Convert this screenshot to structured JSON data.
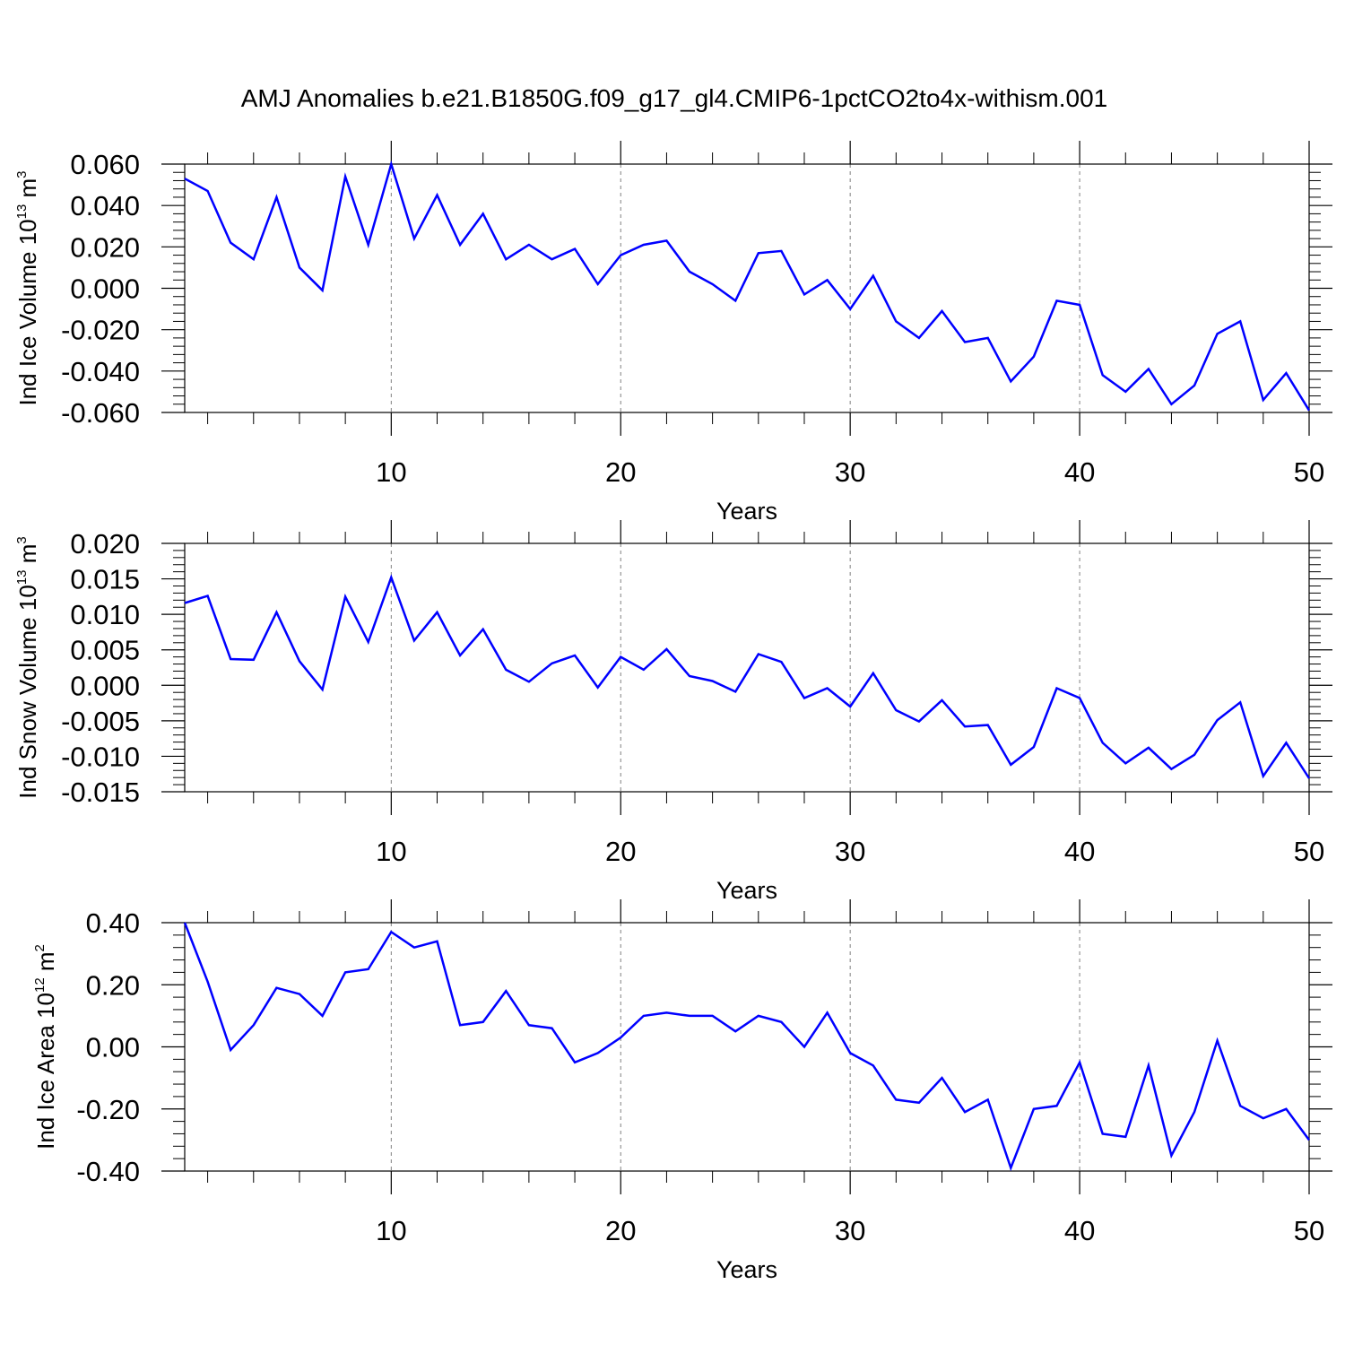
{
  "title": "AMJ Anomalies b.e21.B1850G.f09_g17_gl4.CMIP6-1pctCO2to4x-withism.001",
  "colors": {
    "line": "#0000ff",
    "axis": "#000000",
    "grid": "#808080"
  },
  "chart_data": [
    {
      "type": "line",
      "ylabel": {
        "name": "Ind Ice Volume",
        "exponent": "10",
        "power": "13",
        "unit": "m",
        "unit_power": "3"
      },
      "xlabel": "Years",
      "xlim": [
        1,
        50
      ],
      "ylim": [
        -0.06,
        0.06
      ],
      "yticks": [
        "0.060",
        "0.040",
        "0.020",
        "0.000",
        "-0.020",
        "-0.040",
        "-0.060"
      ],
      "xticks": [
        "10",
        "20",
        "30",
        "40",
        "50"
      ],
      "grid": "vertical dashed at 10, 20, 30, 40",
      "x": [
        1,
        2,
        3,
        4,
        5,
        6,
        7,
        8,
        9,
        10,
        11,
        12,
        13,
        14,
        15,
        16,
        17,
        18,
        19,
        20,
        21,
        22,
        23,
        24,
        25,
        26,
        27,
        28,
        29,
        30,
        31,
        32,
        33,
        34,
        35,
        36,
        37,
        38,
        39,
        40,
        41,
        42,
        43,
        44,
        45,
        46,
        47,
        48,
        49,
        50
      ],
      "y": [
        0.053,
        0.047,
        0.022,
        0.014,
        0.044,
        0.01,
        -0.001,
        0.054,
        0.021,
        0.06,
        0.024,
        0.045,
        0.021,
        0.036,
        0.014,
        0.021,
        0.014,
        0.019,
        0.002,
        0.016,
        0.021,
        0.023,
        0.008,
        0.002,
        -0.006,
        0.017,
        0.018,
        -0.003,
        0.004,
        -0.01,
        0.006,
        -0.016,
        -0.024,
        -0.011,
        -0.026,
        -0.024,
        -0.045,
        -0.033,
        -0.006,
        -0.008,
        -0.042,
        -0.05,
        -0.039,
        -0.056,
        -0.047,
        -0.022,
        -0.016,
        -0.054,
        -0.041,
        -0.059
      ]
    },
    {
      "type": "line",
      "ylabel": {
        "name": "Ind Snow Volume",
        "exponent": "10",
        "power": "13",
        "unit": "m",
        "unit_power": "3"
      },
      "xlabel": "Years",
      "xlim": [
        1,
        50
      ],
      "ylim": [
        -0.015,
        0.02
      ],
      "yticks": [
        "0.020",
        "0.015",
        "0.010",
        "0.005",
        "0.000",
        "-0.005",
        "-0.010",
        "-0.015"
      ],
      "xticks": [
        "10",
        "20",
        "30",
        "40",
        "50"
      ],
      "grid": "vertical dashed at 10, 20, 30, 40",
      "x": [
        1,
        2,
        3,
        4,
        5,
        6,
        7,
        8,
        9,
        10,
        11,
        12,
        13,
        14,
        15,
        16,
        17,
        18,
        19,
        20,
        21,
        22,
        23,
        24,
        25,
        26,
        27,
        28,
        29,
        30,
        31,
        32,
        33,
        34,
        35,
        36,
        37,
        38,
        39,
        40,
        41,
        42,
        43,
        44,
        45,
        46,
        47,
        48,
        49,
        50
      ],
      "y": [
        0.0116,
        0.0126,
        0.0037,
        0.0036,
        0.0103,
        0.0034,
        -0.0006,
        0.0125,
        0.0061,
        0.0152,
        0.0063,
        0.0103,
        0.0042,
        0.0079,
        0.0022,
        0.0005,
        0.0031,
        0.0042,
        -0.0003,
        0.004,
        0.0022,
        0.0051,
        0.0013,
        0.0006,
        -0.0009,
        0.0044,
        0.0033,
        -0.0018,
        -0.0004,
        -0.003,
        0.0017,
        -0.0035,
        -0.0051,
        -0.0021,
        -0.0058,
        -0.0056,
        -0.0112,
        -0.0087,
        -0.0004,
        -0.0018,
        -0.0081,
        -0.011,
        -0.0088,
        -0.0118,
        -0.0098,
        -0.0049,
        -0.0024,
        -0.0128,
        -0.0081,
        -0.0131
      ]
    },
    {
      "type": "line",
      "ylabel": {
        "name": "Ind Ice Area",
        "exponent": "10",
        "power": "12",
        "unit": "m",
        "unit_power": "2"
      },
      "xlabel": "Years",
      "xlim": [
        1,
        50
      ],
      "ylim": [
        -0.4,
        0.4
      ],
      "yticks": [
        "0.40",
        "0.20",
        "0.00",
        "-0.20",
        "-0.40"
      ],
      "xticks": [
        "10",
        "20",
        "30",
        "40",
        "50"
      ],
      "grid": "vertical dashed at 10, 20, 30, 40",
      "x": [
        1,
        2,
        3,
        4,
        5,
        6,
        7,
        8,
        9,
        10,
        11,
        12,
        13,
        14,
        15,
        16,
        17,
        18,
        19,
        20,
        21,
        22,
        23,
        24,
        25,
        26,
        27,
        28,
        29,
        30,
        31,
        32,
        33,
        34,
        35,
        36,
        37,
        38,
        39,
        40,
        41,
        42,
        43,
        44,
        45,
        46,
        47,
        48,
        49,
        50
      ],
      "y": [
        0.4,
        0.21,
        -0.01,
        0.07,
        0.19,
        0.17,
        0.1,
        0.24,
        0.25,
        0.37,
        0.32,
        0.34,
        0.07,
        0.08,
        0.18,
        0.07,
        0.06,
        -0.05,
        -0.02,
        0.03,
        0.1,
        0.11,
        0.1,
        0.1,
        0.05,
        0.1,
        0.08,
        0.0,
        0.11,
        -0.02,
        -0.06,
        -0.17,
        -0.18,
        -0.1,
        -0.21,
        -0.17,
        -0.39,
        -0.2,
        -0.19,
        -0.05,
        -0.28,
        -0.29,
        -0.06,
        -0.35,
        -0.21,
        0.02,
        -0.19,
        -0.23,
        -0.2,
        -0.3
      ]
    }
  ]
}
